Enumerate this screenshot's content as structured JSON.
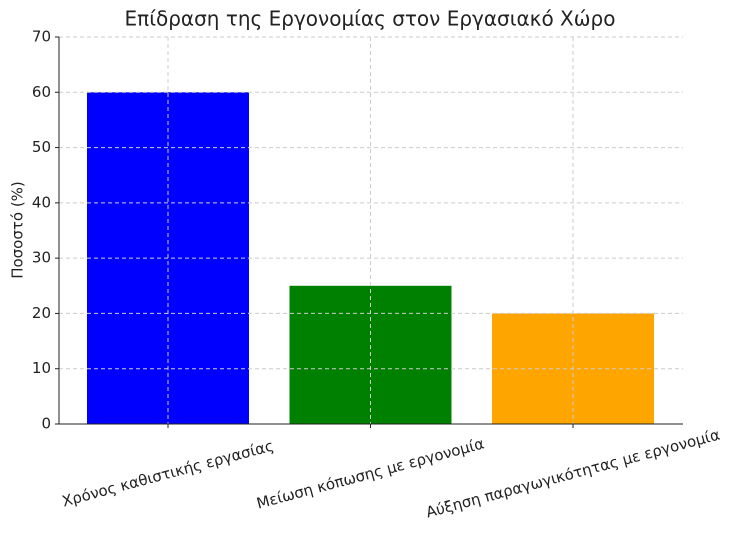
{
  "chart_data": {
    "type": "bar",
    "title": "Επίδραση της Εργονομίας στον Εργασιακό Χώρο",
    "ylabel": "Ποσοστό (%)",
    "categories": [
      "Χρόνος καθιστικής εργασίας",
      "Μείωση κόπωσης με εργονομία",
      "Αύξηση παραγωγικότητας με εργονομία"
    ],
    "values": [
      60,
      25,
      20
    ],
    "colors": [
      "#0000ff",
      "#008000",
      "#ffa500"
    ],
    "ylim": [
      0,
      70
    ],
    "yticks": [
      0,
      10,
      20,
      30,
      40,
      50,
      60,
      70
    ],
    "grid": true
  }
}
